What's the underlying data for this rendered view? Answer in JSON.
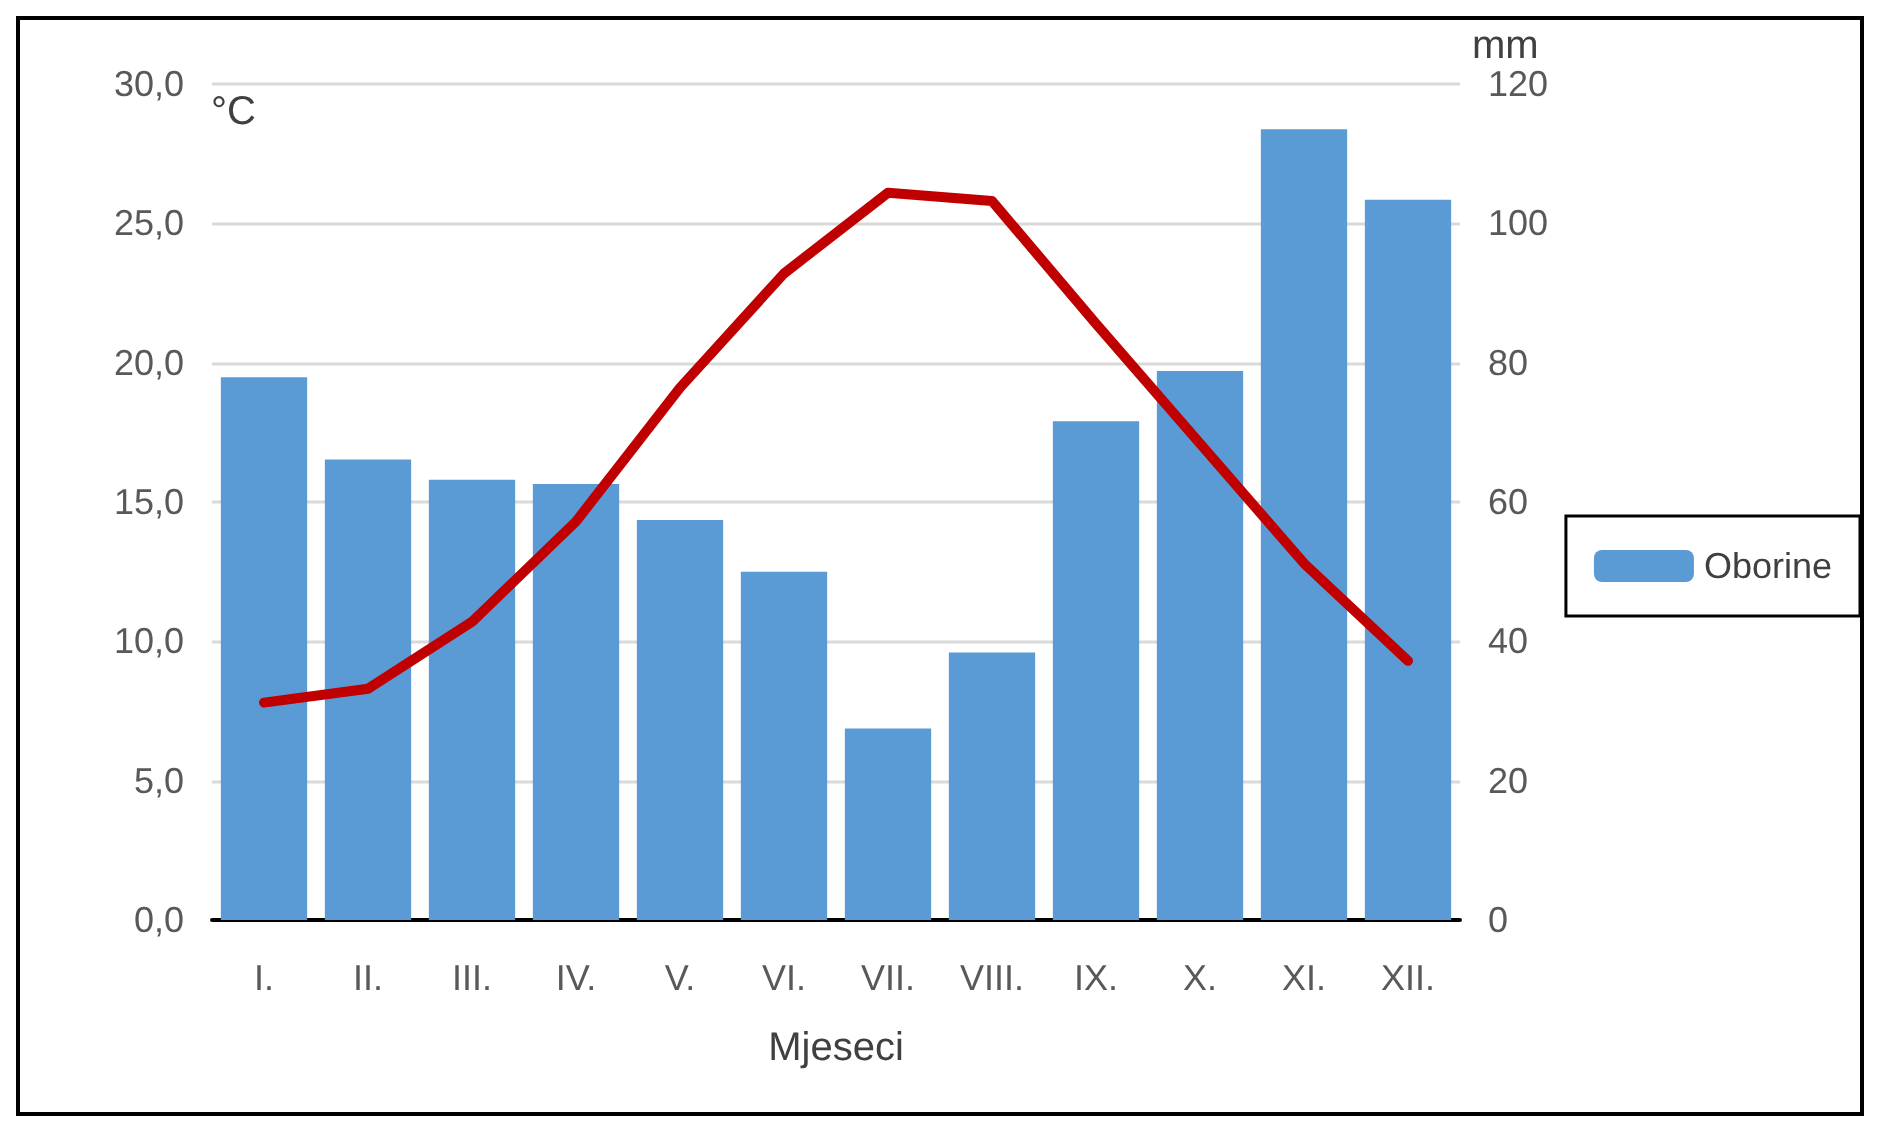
{
  "chart_data": {
    "type": "bar",
    "xlabel": "Mjeseci",
    "ylabel": "°C",
    "y2label": "mm",
    "categories": [
      "I.",
      "II.",
      "III.",
      "IV.",
      "V.",
      "VI.",
      "VII.",
      "VIII.",
      "IX.",
      "X.",
      "XI.",
      "XII."
    ],
    "series": [
      {
        "name": "Oborine",
        "axis": "y2",
        "color": "#5b9bd5",
        "values": [
          77.9,
          66.1,
          63.2,
          62.6,
          57.4,
          50,
          27.5,
          38.4,
          71.6,
          78.8,
          113.5,
          103.4
        ]
      },
      {
        "type": "line",
        "color": "#c00000",
        "marker": "none",
        "values": [
          7.8,
          8.3,
          10.7,
          14.3,
          19.1,
          23.2,
          26.1,
          25.8,
          21.4,
          17.1,
          12.8,
          9.3
        ]
      }
    ],
    "ylim": [
      0,
      30
    ],
    "yticks": [
      {
        "value": 0,
        "label": "0,0"
      },
      {
        "value": 5,
        "label": "5,0"
      },
      {
        "value": 10,
        "label": "10,0"
      },
      {
        "value": 15,
        "label": "15,0"
      },
      {
        "value": 20,
        "label": "20,0"
      },
      {
        "value": 25,
        "label": "25,0"
      },
      {
        "value": 30,
        "label": "30,0"
      }
    ],
    "y2lim": [
      0,
      120
    ],
    "y2ticks": [
      0,
      20,
      40,
      60,
      80,
      100,
      120
    ],
    "grid": "y",
    "legend": "right"
  }
}
